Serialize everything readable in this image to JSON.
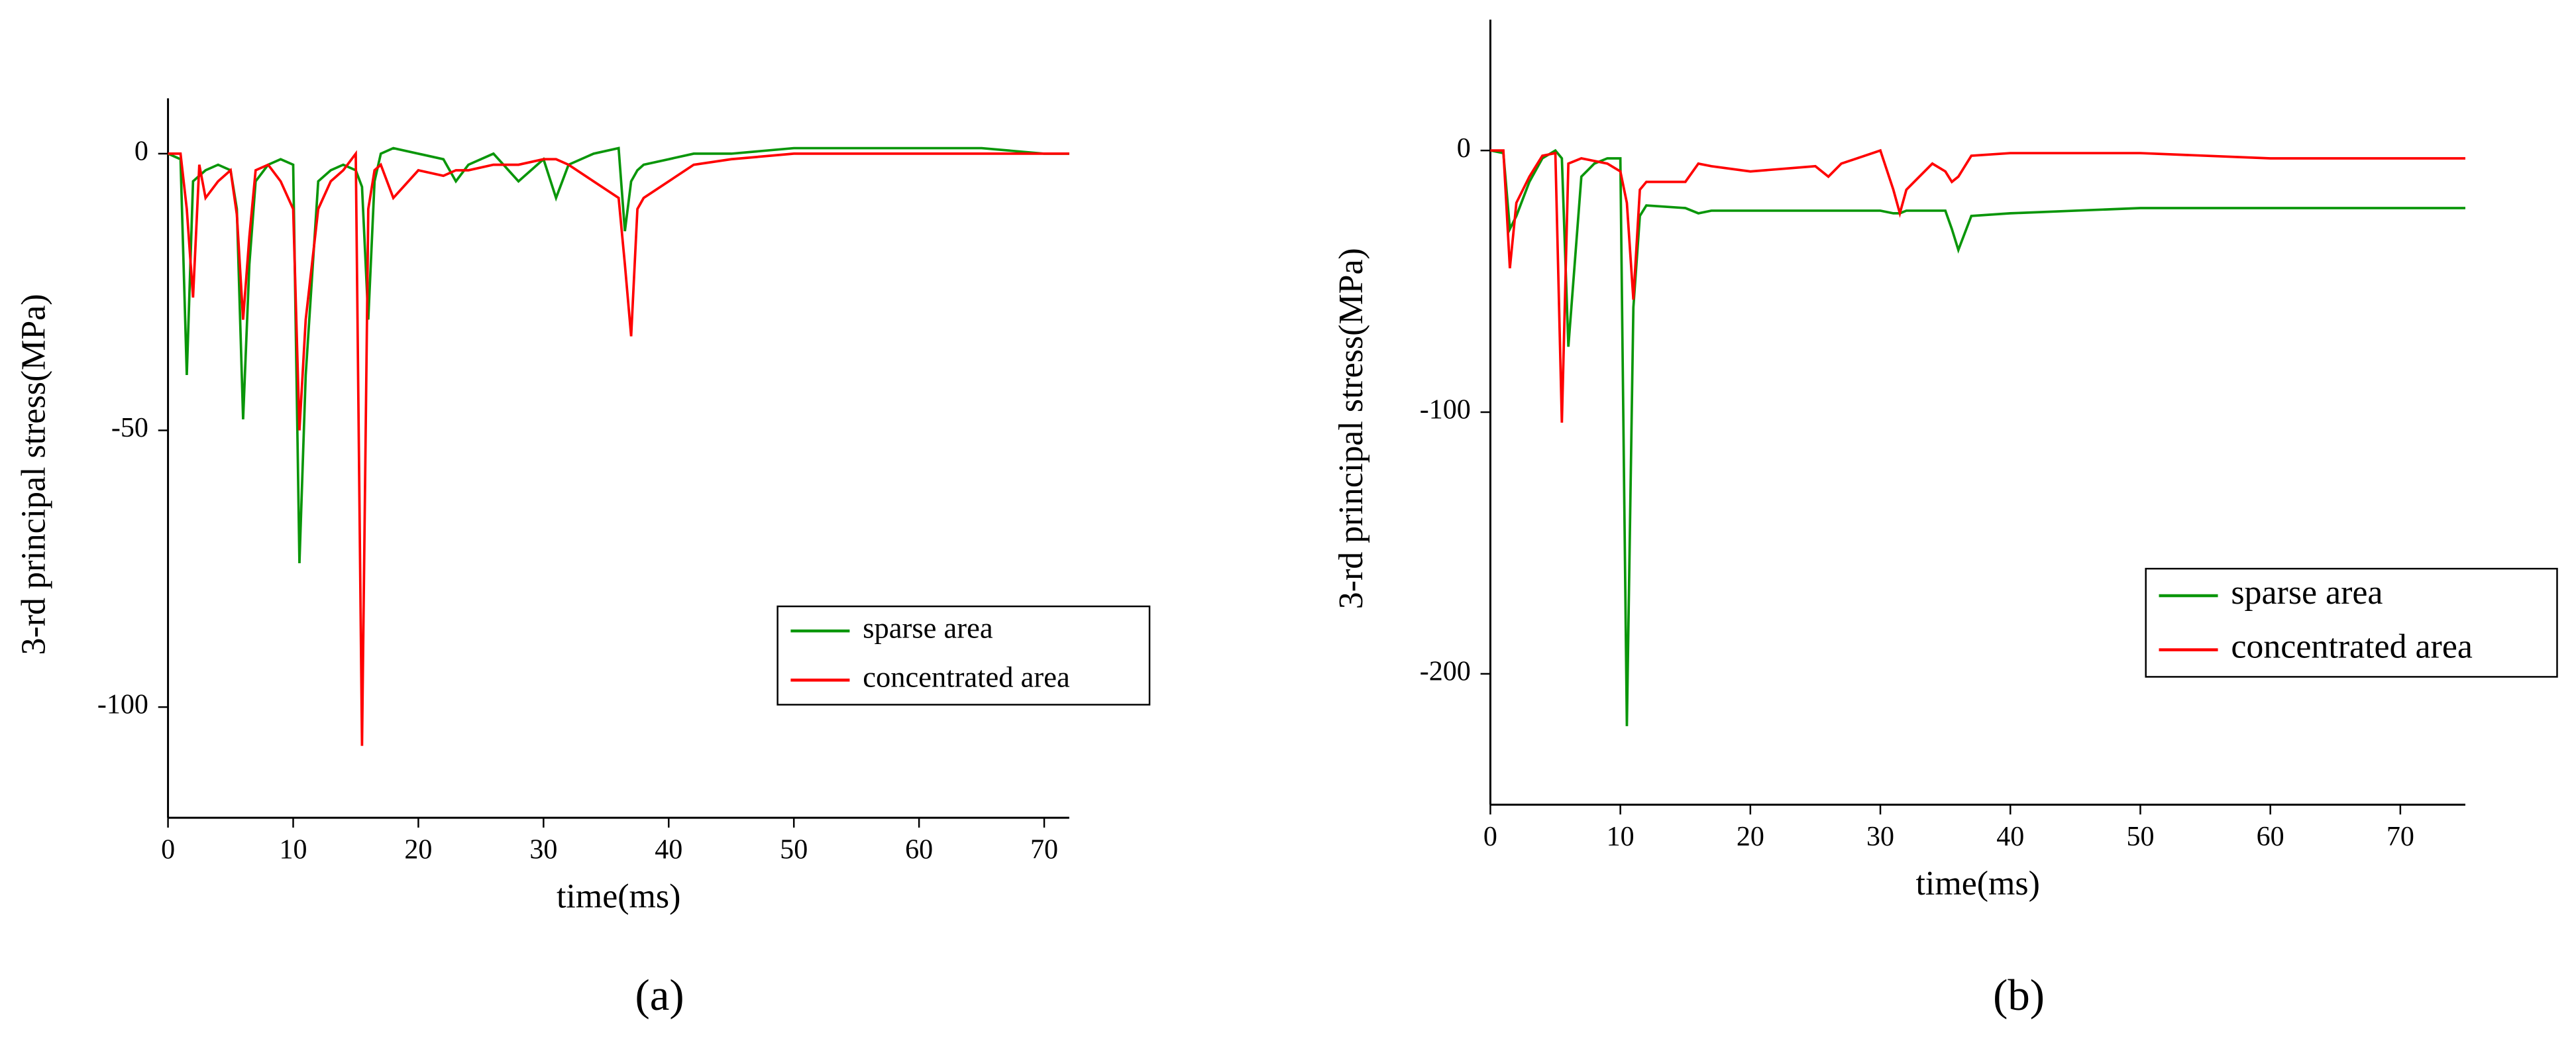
{
  "chart_data": [
    {
      "type": "line",
      "caption": "(a)",
      "xlabel": "time(ms)",
      "ylabel": "3-rd principal stress(MPa)",
      "x": [
        0,
        1,
        1.5,
        2,
        2.5,
        3,
        4,
        5,
        5.5,
        6,
        6.5,
        7,
        8,
        9,
        10,
        10.5,
        11,
        12,
        13,
        14,
        15,
        15.5,
        16,
        16.5,
        17,
        18,
        20,
        22,
        23,
        24,
        26,
        28,
        30,
        31,
        32,
        34,
        36,
        36.5,
        37,
        37.5,
        38,
        40,
        42,
        45,
        50,
        60,
        65,
        70,
        72
      ],
      "series": [
        {
          "name": "sparse area",
          "color": "#0a960a",
          "values": [
            0,
            -1,
            -40,
            -5,
            -4,
            -3,
            -2,
            -3,
            -10,
            -48,
            -20,
            -5,
            -2,
            -1,
            -2,
            -74,
            -40,
            -5,
            -3,
            -2,
            -3,
            -6,
            -30,
            -5,
            0,
            1,
            0,
            -1,
            -5,
            -2,
            0,
            -5,
            -1,
            -8,
            -2,
            0,
            1,
            -14,
            -5,
            -3,
            -2,
            -1,
            0,
            0,
            1,
            1,
            1,
            0,
            0
          ]
        },
        {
          "name": "concentrated area",
          "color": "#ff0000",
          "values": [
            0,
            0,
            -10,
            -26,
            -2,
            -8,
            -5,
            -3,
            -11,
            -30,
            -15,
            -3,
            -2,
            -5,
            -10,
            -50,
            -30,
            -10,
            -5,
            -3,
            0,
            -107,
            -10,
            -3,
            -2,
            -8,
            -3,
            -4,
            -3,
            -3,
            -2,
            -2,
            -1,
            -1,
            -2,
            -5,
            -8,
            -20,
            -33,
            -10,
            -8,
            -5,
            -2,
            -1,
            0,
            0,
            0,
            0,
            0
          ]
        }
      ],
      "xlim": [
        0,
        72
      ],
      "ylim": [
        -120,
        10
      ],
      "xticks": [
        0,
        10,
        20,
        30,
        40,
        50,
        60,
        70
      ],
      "yticks": [
        -100,
        -50,
        0
      ],
      "legend": "lower right"
    },
    {
      "type": "line",
      "caption": "(b)",
      "xlabel": "time(ms)",
      "ylabel": "3-rd principal stress(MPa)",
      "x": [
        0,
        1,
        1.5,
        2,
        3,
        4,
        5,
        5.5,
        6,
        7,
        8,
        9,
        10,
        10.5,
        11,
        11.5,
        12,
        15,
        16,
        17,
        20,
        25,
        26,
        27,
        30,
        31,
        31.5,
        32,
        33,
        34,
        35,
        35.5,
        36,
        37,
        40,
        45,
        50,
        60,
        70,
        75
      ],
      "series": [
        {
          "name": "sparse area",
          "color": "#0a960a",
          "values": [
            0,
            -1,
            -30,
            -25,
            -12,
            -3,
            0,
            -3,
            -75,
            -10,
            -5,
            -3,
            -3,
            -220,
            -60,
            -25,
            -21,
            -22,
            -24,
            -23,
            -23,
            -23,
            -23,
            -23,
            -23,
            -24,
            -24,
            -23,
            -23,
            -23,
            -23,
            -30,
            -38,
            -25,
            -24,
            -23,
            -22,
            -22,
            -22,
            -22
          ]
        },
        {
          "name": "concentrated area",
          "color": "#ff0000",
          "values": [
            0,
            0,
            -45,
            -20,
            -10,
            -2,
            -1,
            -104,
            -5,
            -3,
            -4,
            -5,
            -8,
            -20,
            -57,
            -15,
            -12,
            -12,
            -5,
            -6,
            -8,
            -6,
            -10,
            -5,
            0,
            -15,
            -24,
            -15,
            -10,
            -5,
            -8,
            -12,
            -10,
            -2,
            -1,
            -1,
            -1,
            -3,
            -3,
            -3
          ]
        }
      ],
      "xlim": [
        0,
        75
      ],
      "ylim": [
        -250,
        50
      ],
      "xticks": [
        0,
        10,
        20,
        30,
        40,
        50,
        60,
        70
      ],
      "yticks": [
        -200,
        -100,
        0
      ],
      "legend": "lower right"
    }
  ]
}
